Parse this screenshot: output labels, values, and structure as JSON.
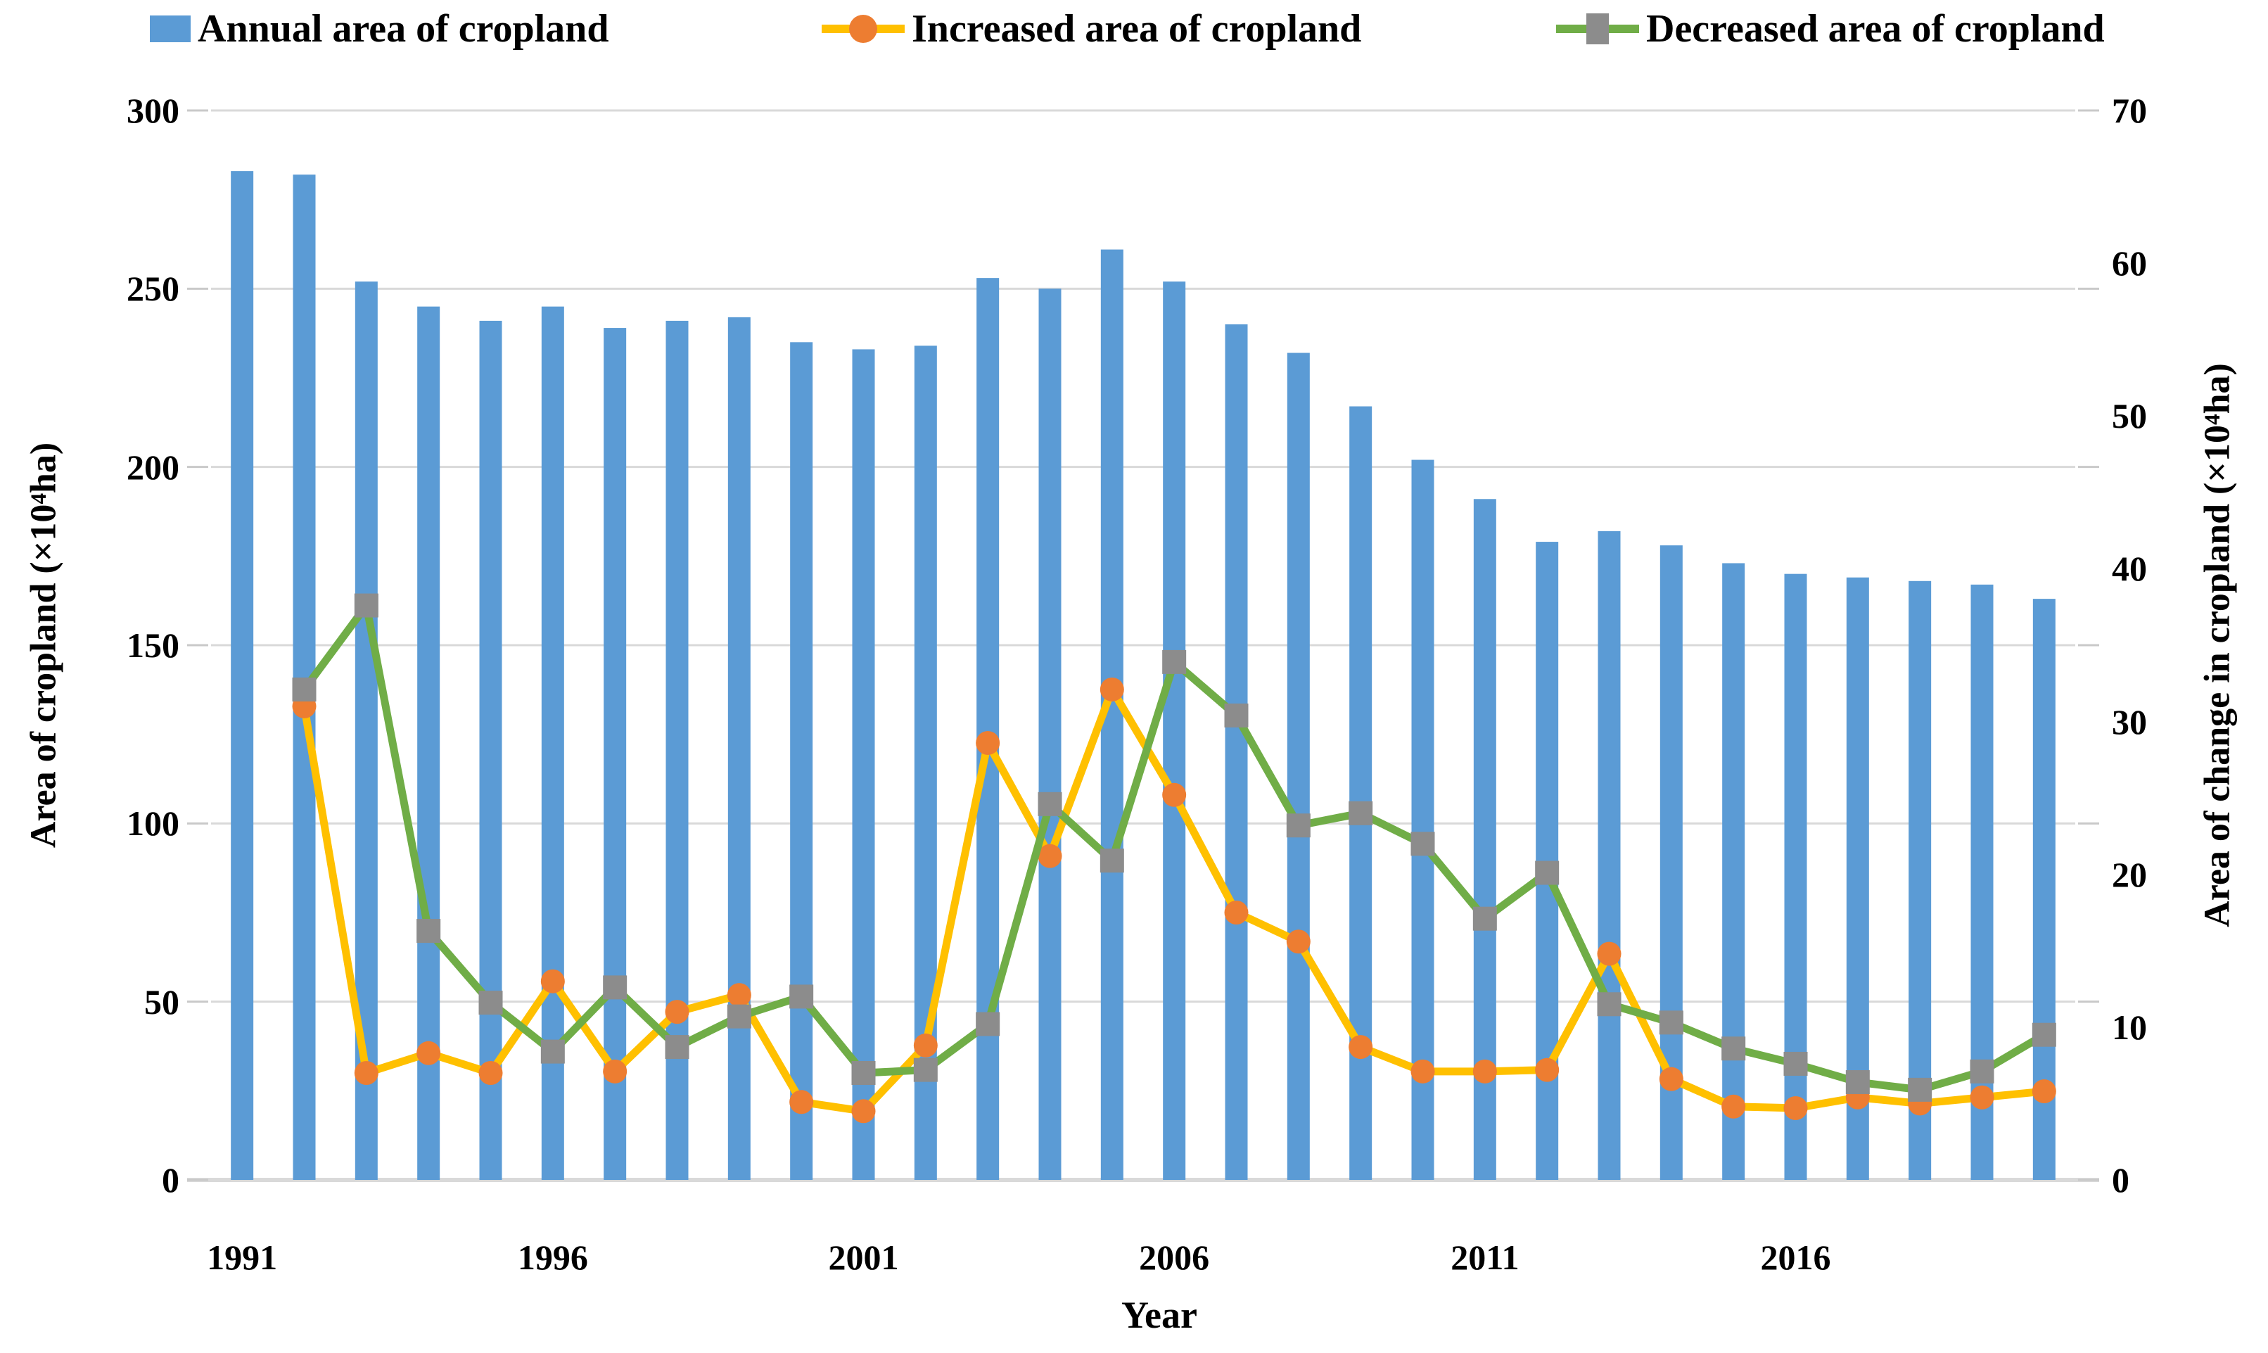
{
  "chart_data": {
    "type": "bar",
    "subtype": "combo-bar-line-dual-axis",
    "title": "",
    "x_axis": {
      "title": "Year",
      "tick_labels": [
        "1991",
        "1996",
        "2001",
        "2006",
        "2011",
        "2016"
      ],
      "tick_indices": [
        0,
        5,
        10,
        15,
        20,
        25
      ]
    },
    "y_left": {
      "title": "Area of cropland (×10⁴ha)",
      "ticks": [
        300,
        250,
        200,
        150,
        100,
        50,
        0
      ],
      "max": 300
    },
    "y_right": {
      "title": "Area of change in cropland (×10⁴ha)",
      "ticks": [
        70,
        60,
        50,
        40,
        30,
        20,
        10,
        0
      ],
      "max": 70
    },
    "years": [
      1991,
      1992,
      1993,
      1994,
      1995,
      1996,
      1997,
      1998,
      1999,
      2000,
      2001,
      2002,
      2003,
      2004,
      2005,
      2006,
      2007,
      2008,
      2009,
      2010,
      2011,
      2012,
      2013,
      2014,
      2015,
      2016,
      2017,
      2018,
      2019,
      2020
    ],
    "series": [
      {
        "name": "Annual area of cropland",
        "type": "bar",
        "axis": "left",
        "color": "#5B9BD5",
        "values": [
          283,
          282,
          252,
          245,
          241,
          245,
          239,
          241,
          242,
          235,
          233,
          234,
          253,
          250,
          261,
          252,
          240,
          232,
          217,
          202,
          191,
          179,
          182,
          178,
          173,
          170,
          169,
          168,
          167,
          163
        ]
      },
      {
        "name": "Increased area of cropland",
        "type": "line",
        "axis": "right",
        "line_color": "#FFC000",
        "marker": "circle",
        "marker_color": "#ED7D31",
        "values": [
          null,
          31,
          7,
          8.3,
          7,
          13,
          7.1,
          11,
          12.1,
          5.1,
          4.5,
          8.8,
          28.6,
          21.2,
          32.1,
          25.2,
          17.5,
          15.6,
          8.7,
          7.1,
          7.1,
          7.2,
          14.8,
          6.6,
          4.8,
          4.7,
          5.4,
          5,
          5.4,
          5.8
        ]
      },
      {
        "name": "Decreased area of cropland",
        "type": "line",
        "axis": "right",
        "line_color": "#70AD47",
        "marker": "square",
        "marker_color": "#8C8C8C",
        "values": [
          null,
          32.1,
          37.6,
          16.3,
          11.6,
          8.4,
          12.6,
          8.7,
          10.7,
          12,
          7,
          7.2,
          10.2,
          24.6,
          20.9,
          33.9,
          30.4,
          23.2,
          24,
          22,
          17.1,
          20.1,
          11.5,
          10.3,
          8.6,
          7.6,
          6.4,
          5.9,
          7.1,
          9.5
        ]
      }
    ],
    "grid_on": true,
    "grid_color": "#D9D9D9",
    "tick_mark_color": "#C9C9C9",
    "legend_position": "top"
  }
}
